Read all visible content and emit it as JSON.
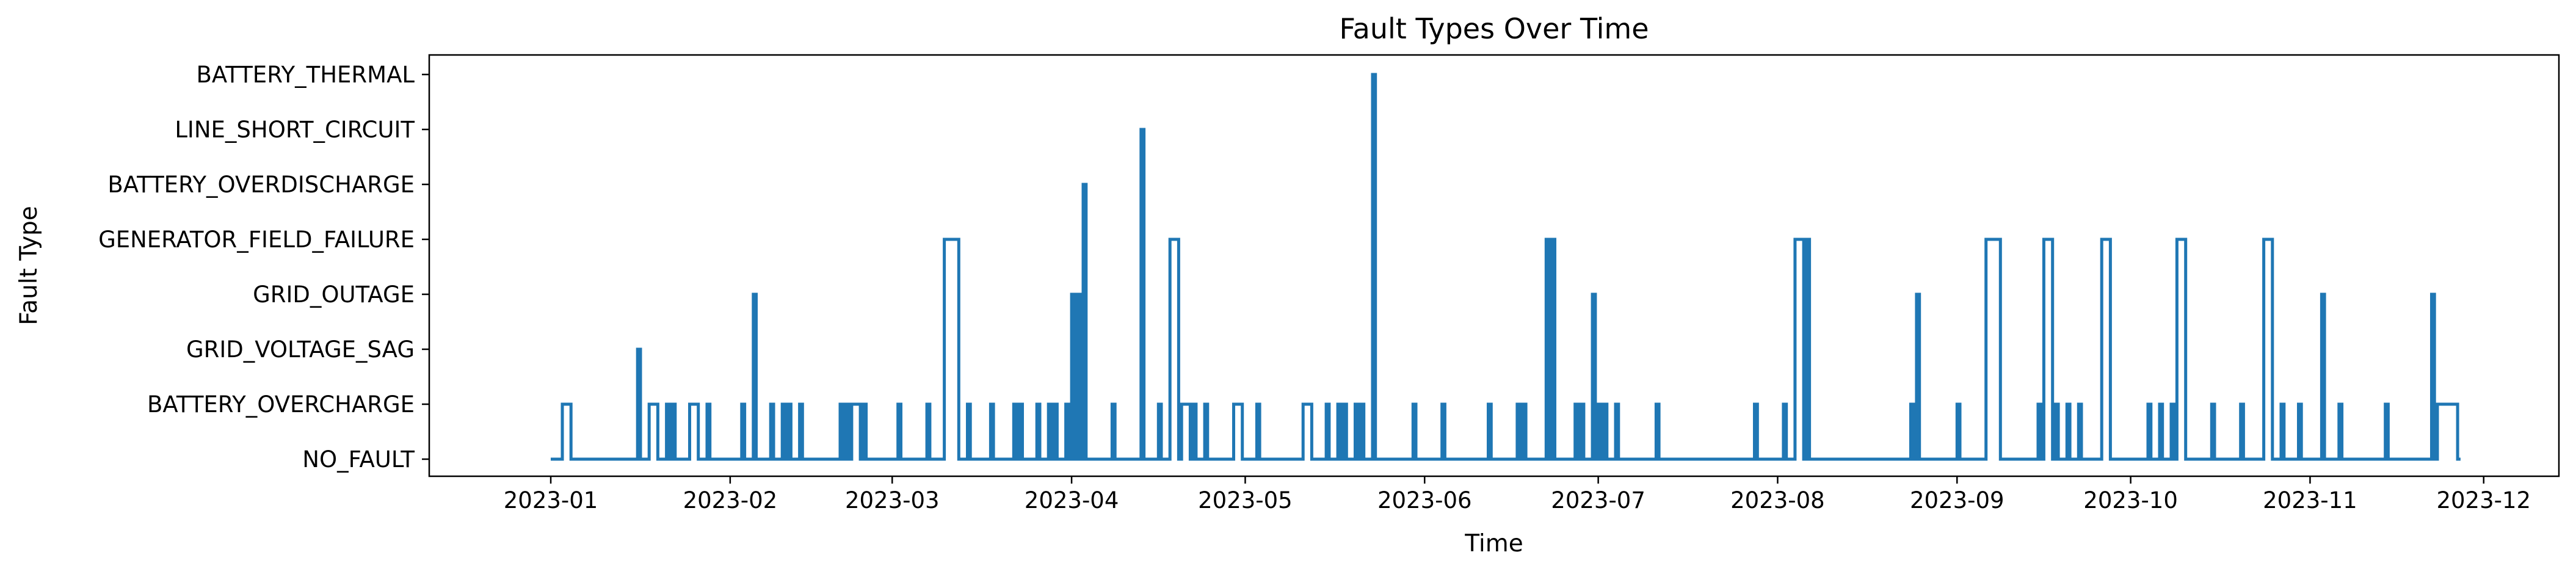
{
  "chart_data": {
    "type": "line",
    "step": "post",
    "title": "Fault Types Over Time",
    "xlabel": "Time",
    "ylabel": "Fault Type",
    "color": "#1f77b4",
    "grid": false,
    "legend": "none",
    "categories": [
      "NO_FAULT",
      "BATTERY_OVERCHARGE",
      "GRID_VOLTAGE_SAG",
      "GRID_OUTAGE",
      "GENERATOR_FIELD_FAILURE",
      "BATTERY_OVERDISCHARGE",
      "LINE_SHORT_CIRCUIT",
      "BATTERY_THERMAL"
    ],
    "xlim": [
      "2022-12-11",
      "2023-12-14"
    ],
    "x_ticks": [
      "2023-01",
      "2023-02",
      "2023-03",
      "2023-04",
      "2023-05",
      "2023-06",
      "2023-07",
      "2023-08",
      "2023-09",
      "2023-10",
      "2023-11",
      "2023-12"
    ],
    "x_range": [
      "2023-01-01",
      "2023-11-27"
    ],
    "events": [
      {
        "start": "2023-01-03",
        "end": "2023-01-04",
        "fault": "BATTERY_OVERCHARGE"
      },
      {
        "start": "2023-01-16",
        "end": "2023-01-16",
        "fault": "GRID_VOLTAGE_SAG"
      },
      {
        "start": "2023-01-18",
        "end": "2023-01-19",
        "fault": "BATTERY_OVERCHARGE"
      },
      {
        "start": "2023-01-21",
        "end": "2023-01-21",
        "fault": "BATTERY_OVERCHARGE"
      },
      {
        "start": "2023-01-22",
        "end": "2023-01-22",
        "fault": "BATTERY_OVERCHARGE"
      },
      {
        "start": "2023-01-25",
        "end": "2023-01-26",
        "fault": "BATTERY_OVERCHARGE"
      },
      {
        "start": "2023-01-28",
        "end": "2023-01-28",
        "fault": "BATTERY_OVERCHARGE"
      },
      {
        "start": "2023-02-03",
        "end": "2023-02-03",
        "fault": "BATTERY_OVERCHARGE"
      },
      {
        "start": "2023-02-05",
        "end": "2023-02-05",
        "fault": "GRID_OUTAGE"
      },
      {
        "start": "2023-02-08",
        "end": "2023-02-08",
        "fault": "BATTERY_OVERCHARGE"
      },
      {
        "start": "2023-02-10",
        "end": "2023-02-10",
        "fault": "BATTERY_OVERCHARGE"
      },
      {
        "start": "2023-02-11",
        "end": "2023-02-11",
        "fault": "BATTERY_OVERCHARGE"
      },
      {
        "start": "2023-02-13",
        "end": "2023-02-13",
        "fault": "BATTERY_OVERCHARGE"
      },
      {
        "start": "2023-02-20",
        "end": "2023-02-20",
        "fault": "BATTERY_OVERCHARGE"
      },
      {
        "start": "2023-02-21",
        "end": "2023-02-21",
        "fault": "BATTERY_OVERCHARGE"
      },
      {
        "start": "2023-02-22",
        "end": "2023-02-23",
        "fault": "BATTERY_OVERCHARGE"
      },
      {
        "start": "2023-02-24",
        "end": "2023-02-24",
        "fault": "BATTERY_OVERCHARGE"
      },
      {
        "start": "2023-03-02",
        "end": "2023-03-02",
        "fault": "BATTERY_OVERCHARGE"
      },
      {
        "start": "2023-03-07",
        "end": "2023-03-07",
        "fault": "BATTERY_OVERCHARGE"
      },
      {
        "start": "2023-03-10",
        "end": "2023-03-12",
        "fault": "GENERATOR_FIELD_FAILURE"
      },
      {
        "start": "2023-03-14",
        "end": "2023-03-14",
        "fault": "BATTERY_OVERCHARGE"
      },
      {
        "start": "2023-03-18",
        "end": "2023-03-18",
        "fault": "BATTERY_OVERCHARGE"
      },
      {
        "start": "2023-03-22",
        "end": "2023-03-22",
        "fault": "BATTERY_OVERCHARGE"
      },
      {
        "start": "2023-03-23",
        "end": "2023-03-23",
        "fault": "BATTERY_OVERCHARGE"
      },
      {
        "start": "2023-03-26",
        "end": "2023-03-26",
        "fault": "BATTERY_OVERCHARGE"
      },
      {
        "start": "2023-03-28",
        "end": "2023-03-28",
        "fault": "BATTERY_OVERCHARGE"
      },
      {
        "start": "2023-03-29",
        "end": "2023-03-29",
        "fault": "BATTERY_OVERCHARGE"
      },
      {
        "start": "2023-03-31",
        "end": "2023-03-31",
        "fault": "BATTERY_OVERCHARGE"
      },
      {
        "start": "2023-04-01",
        "end": "2023-04-01",
        "fault": "GRID_OUTAGE"
      },
      {
        "start": "2023-04-02",
        "end": "2023-04-02",
        "fault": "GRID_OUTAGE"
      },
      {
        "start": "2023-04-03",
        "end": "2023-04-03",
        "fault": "BATTERY_OVERDISCHARGE"
      },
      {
        "start": "2023-04-08",
        "end": "2023-04-08",
        "fault": "BATTERY_OVERCHARGE"
      },
      {
        "start": "2023-04-13",
        "end": "2023-04-13",
        "fault": "LINE_SHORT_CIRCUIT"
      },
      {
        "start": "2023-04-16",
        "end": "2023-04-16",
        "fault": "BATTERY_OVERCHARGE"
      },
      {
        "start": "2023-04-18",
        "end": "2023-04-19",
        "fault": "GENERATOR_FIELD_FAILURE"
      },
      {
        "start": "2023-04-20",
        "end": "2023-04-21",
        "fault": "BATTERY_OVERCHARGE"
      },
      {
        "start": "2023-04-22",
        "end": "2023-04-22",
        "fault": "BATTERY_OVERCHARGE"
      },
      {
        "start": "2023-04-24",
        "end": "2023-04-24",
        "fault": "BATTERY_OVERCHARGE"
      },
      {
        "start": "2023-04-29",
        "end": "2023-04-30",
        "fault": "BATTERY_OVERCHARGE"
      },
      {
        "start": "2023-05-03",
        "end": "2023-05-03",
        "fault": "BATTERY_OVERCHARGE"
      },
      {
        "start": "2023-05-11",
        "end": "2023-05-12",
        "fault": "BATTERY_OVERCHARGE"
      },
      {
        "start": "2023-05-15",
        "end": "2023-05-15",
        "fault": "BATTERY_OVERCHARGE"
      },
      {
        "start": "2023-05-17",
        "end": "2023-05-17",
        "fault": "BATTERY_OVERCHARGE"
      },
      {
        "start": "2023-05-18",
        "end": "2023-05-18",
        "fault": "BATTERY_OVERCHARGE"
      },
      {
        "start": "2023-05-20",
        "end": "2023-05-20",
        "fault": "BATTERY_OVERCHARGE"
      },
      {
        "start": "2023-05-21",
        "end": "2023-05-21",
        "fault": "BATTERY_OVERCHARGE"
      },
      {
        "start": "2023-05-23",
        "end": "2023-05-23",
        "fault": "BATTERY_THERMAL"
      },
      {
        "start": "2023-05-30",
        "end": "2023-05-30",
        "fault": "BATTERY_OVERCHARGE"
      },
      {
        "start": "2023-06-04",
        "end": "2023-06-04",
        "fault": "BATTERY_OVERCHARGE"
      },
      {
        "start": "2023-06-12",
        "end": "2023-06-12",
        "fault": "BATTERY_OVERCHARGE"
      },
      {
        "start": "2023-06-17",
        "end": "2023-06-17",
        "fault": "BATTERY_OVERCHARGE"
      },
      {
        "start": "2023-06-18",
        "end": "2023-06-18",
        "fault": "BATTERY_OVERCHARGE"
      },
      {
        "start": "2023-06-22",
        "end": "2023-06-22",
        "fault": "GENERATOR_FIELD_FAILURE"
      },
      {
        "start": "2023-06-23",
        "end": "2023-06-23",
        "fault": "GENERATOR_FIELD_FAILURE"
      },
      {
        "start": "2023-06-27",
        "end": "2023-06-27",
        "fault": "BATTERY_OVERCHARGE"
      },
      {
        "start": "2023-06-28",
        "end": "2023-06-28",
        "fault": "BATTERY_OVERCHARGE"
      },
      {
        "start": "2023-06-30",
        "end": "2023-06-30",
        "fault": "GRID_OUTAGE"
      },
      {
        "start": "2023-07-01",
        "end": "2023-07-01",
        "fault": "BATTERY_OVERCHARGE"
      },
      {
        "start": "2023-07-02",
        "end": "2023-07-02",
        "fault": "BATTERY_OVERCHARGE"
      },
      {
        "start": "2023-07-04",
        "end": "2023-07-04",
        "fault": "BATTERY_OVERCHARGE"
      },
      {
        "start": "2023-07-11",
        "end": "2023-07-11",
        "fault": "BATTERY_OVERCHARGE"
      },
      {
        "start": "2023-07-28",
        "end": "2023-07-28",
        "fault": "BATTERY_OVERCHARGE"
      },
      {
        "start": "2023-08-02",
        "end": "2023-08-02",
        "fault": "BATTERY_OVERCHARGE"
      },
      {
        "start": "2023-08-04",
        "end": "2023-08-05",
        "fault": "GENERATOR_FIELD_FAILURE"
      },
      {
        "start": "2023-08-06",
        "end": "2023-08-06",
        "fault": "GENERATOR_FIELD_FAILURE"
      },
      {
        "start": "2023-08-24",
        "end": "2023-08-24",
        "fault": "BATTERY_OVERCHARGE"
      },
      {
        "start": "2023-08-25",
        "end": "2023-08-25",
        "fault": "GRID_OUTAGE"
      },
      {
        "start": "2023-09-01",
        "end": "2023-09-01",
        "fault": "BATTERY_OVERCHARGE"
      },
      {
        "start": "2023-09-06",
        "end": "2023-09-08",
        "fault": "GENERATOR_FIELD_FAILURE"
      },
      {
        "start": "2023-09-15",
        "end": "2023-09-15",
        "fault": "BATTERY_OVERCHARGE"
      },
      {
        "start": "2023-09-16",
        "end": "2023-09-17",
        "fault": "GENERATOR_FIELD_FAILURE"
      },
      {
        "start": "2023-09-18",
        "end": "2023-09-18",
        "fault": "BATTERY_OVERCHARGE"
      },
      {
        "start": "2023-09-20",
        "end": "2023-09-20",
        "fault": "BATTERY_OVERCHARGE"
      },
      {
        "start": "2023-09-22",
        "end": "2023-09-22",
        "fault": "BATTERY_OVERCHARGE"
      },
      {
        "start": "2023-09-26",
        "end": "2023-09-27",
        "fault": "GENERATOR_FIELD_FAILURE"
      },
      {
        "start": "2023-10-04",
        "end": "2023-10-04",
        "fault": "BATTERY_OVERCHARGE"
      },
      {
        "start": "2023-10-06",
        "end": "2023-10-06",
        "fault": "BATTERY_OVERCHARGE"
      },
      {
        "start": "2023-10-08",
        "end": "2023-10-08",
        "fault": "BATTERY_OVERCHARGE"
      },
      {
        "start": "2023-10-09",
        "end": "2023-10-10",
        "fault": "GENERATOR_FIELD_FAILURE"
      },
      {
        "start": "2023-10-15",
        "end": "2023-10-15",
        "fault": "BATTERY_OVERCHARGE"
      },
      {
        "start": "2023-10-20",
        "end": "2023-10-20",
        "fault": "BATTERY_OVERCHARGE"
      },
      {
        "start": "2023-10-24",
        "end": "2023-10-25",
        "fault": "GENERATOR_FIELD_FAILURE"
      },
      {
        "start": "2023-10-27",
        "end": "2023-10-27",
        "fault": "BATTERY_OVERCHARGE"
      },
      {
        "start": "2023-10-30",
        "end": "2023-10-30",
        "fault": "BATTERY_OVERCHARGE"
      },
      {
        "start": "2023-11-03",
        "end": "2023-11-03",
        "fault": "GRID_OUTAGE"
      },
      {
        "start": "2023-11-06",
        "end": "2023-11-06",
        "fault": "BATTERY_OVERCHARGE"
      },
      {
        "start": "2023-11-14",
        "end": "2023-11-14",
        "fault": "BATTERY_OVERCHARGE"
      },
      {
        "start": "2023-11-22",
        "end": "2023-11-22",
        "fault": "GRID_OUTAGE"
      },
      {
        "start": "2023-11-23",
        "end": "2023-11-26",
        "fault": "BATTERY_OVERCHARGE"
      }
    ]
  }
}
